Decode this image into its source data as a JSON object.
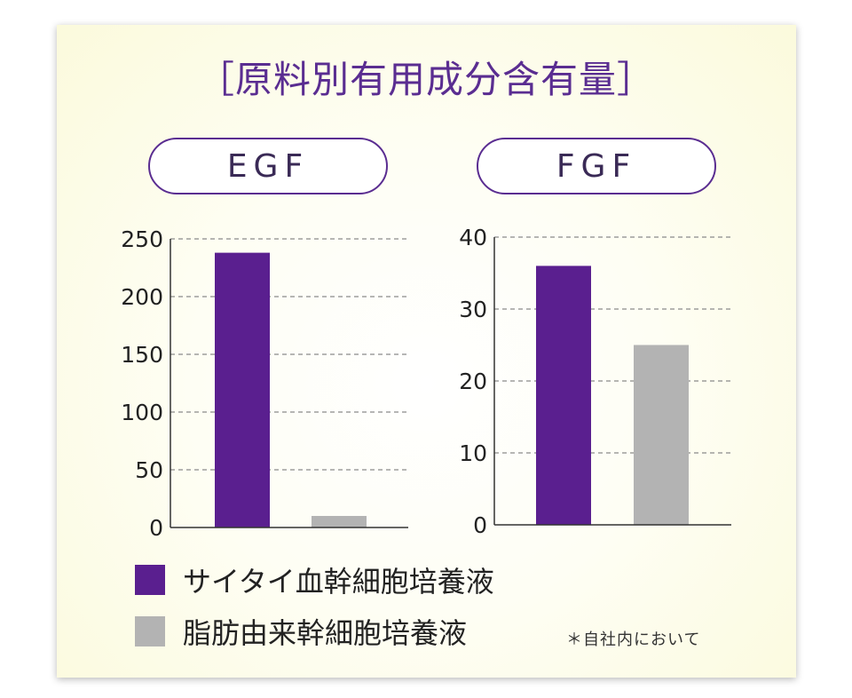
{
  "title": "［原料別有用成分含有量］",
  "colors": {
    "primary": "#5a1f8f",
    "secondary": "#b3b3b3",
    "accent_border": "#5a2d91"
  },
  "legend": [
    {
      "label": "サイタイ血幹細胞培養液",
      "color": "#5a1f8f"
    },
    {
      "label": "脂肪由来幹細胞培養液",
      "color": "#b3b3b3"
    }
  ],
  "footnote": "＊自社内において",
  "chart_data": [
    {
      "type": "bar",
      "title": "EGF",
      "categories": [
        "サイタイ血幹細胞培養液",
        "脂肪由来幹細胞培養液"
      ],
      "values": [
        238,
        10
      ],
      "ylim": [
        0,
        250
      ],
      "yticks": [
        0,
        50,
        100,
        150,
        200,
        250
      ],
      "grid": true
    },
    {
      "type": "bar",
      "title": "FGF",
      "categories": [
        "サイタイ血幹細胞培養液",
        "脂肪由来幹細胞培養液"
      ],
      "values": [
        36,
        25
      ],
      "ylim": [
        0,
        40
      ],
      "yticks": [
        0,
        10,
        20,
        30,
        40
      ],
      "grid": true
    }
  ]
}
